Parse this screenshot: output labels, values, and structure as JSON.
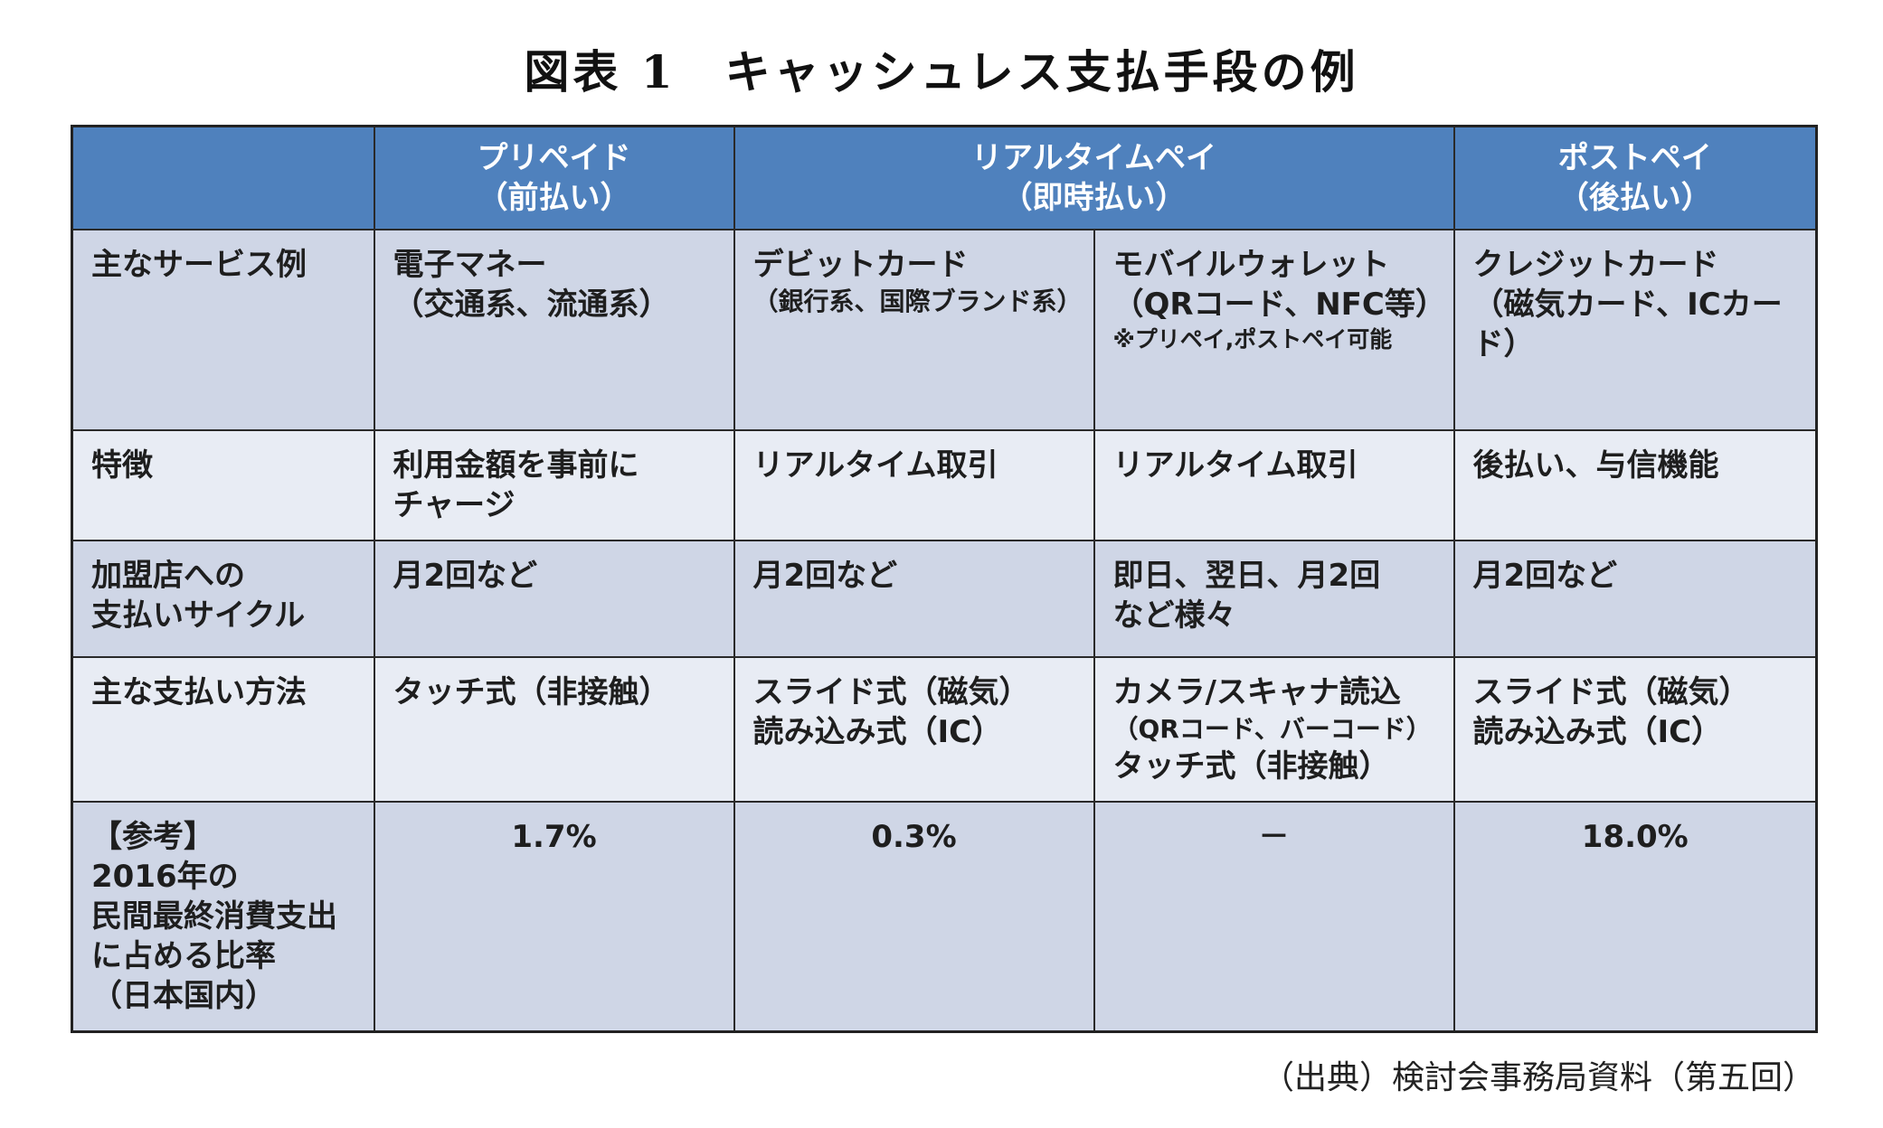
{
  "title": "図表 1　キャッシュレス支払手段の例",
  "source": "（出典）検討会事務局資料（第五回）",
  "header": {
    "corner": "",
    "prepaid": [
      "プリペイド",
      "（前払い）"
    ],
    "realtime": [
      "リアルタイムペイ",
      "（即時払い）"
    ],
    "postpay": [
      "ポストペイ",
      "（後払い）"
    ]
  },
  "rows": {
    "services": {
      "label": "主なサービス例",
      "prepaid": [
        "電子マネー",
        "（交通系、流通系）"
      ],
      "debit": [
        "デビットカード",
        "（銀行系、国際ブランド系）"
      ],
      "mobile": [
        "モバイルウォレット",
        "（QRコード、NFC等）",
        "※プリペイ,ポストペイ可能"
      ],
      "postpay": [
        "クレジットカード",
        "（磁気カード、ICカード）"
      ]
    },
    "features": {
      "label": "特徴",
      "prepaid": [
        "利用金額を事前に",
        "チャージ"
      ],
      "debit": "リアルタイム取引",
      "mobile": "リアルタイム取引",
      "postpay": "後払い、与信機能"
    },
    "cycle": {
      "label": [
        "加盟店への",
        "支払いサイクル"
      ],
      "prepaid": "月2回など",
      "debit": "月2回など",
      "mobile": [
        "即日、翌日、月2回",
        "など様々"
      ],
      "postpay": "月2回など"
    },
    "methods": {
      "label": "主な支払い方法",
      "prepaid": "タッチ式（非接触）",
      "debit": [
        "スライド式（磁気）",
        "読み込み式（IC）"
      ],
      "mobile": [
        "カメラ/スキャナ読込",
        "（QRコード、バーコード）",
        "タッチ式（非接触）"
      ],
      "postpay": [
        "スライド式（磁気）",
        "読み込み式（IC）"
      ]
    },
    "ratio": {
      "label": [
        "【参考】",
        "2016年の",
        "民間最終消費支出",
        "に占める比率",
        "（日本国内）"
      ],
      "prepaid": "1.7%",
      "debit": "0.3%",
      "mobile": "－",
      "postpay": "18.0%"
    }
  },
  "colors": {
    "header_bg": "#4f81bd",
    "row_light": "#e8ecf4",
    "row_dark": "#cfd6e6"
  }
}
